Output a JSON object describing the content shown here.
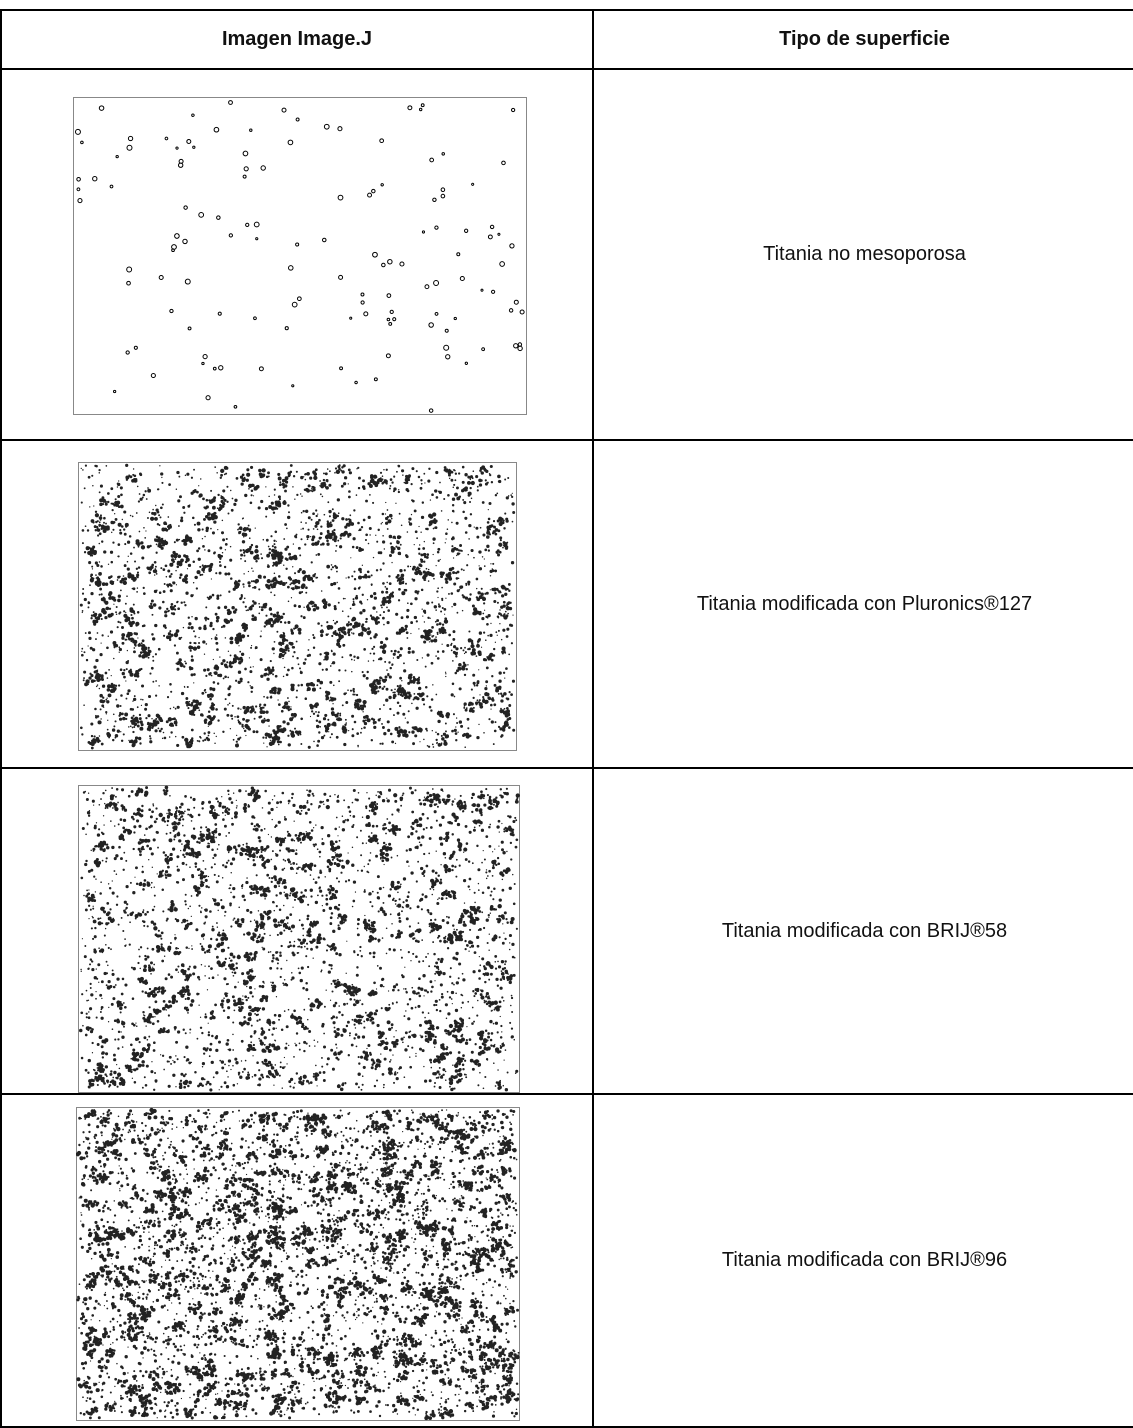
{
  "table": {
    "header": [
      "Imagen Image.J",
      "Tipo de superficie"
    ],
    "rows": [
      {
        "surface": "Titania no mesoporosa"
      },
      {
        "surface": "Titania modificada con Pluronics®127"
      },
      {
        "surface": "Titania modificada con BRIJ®58"
      },
      {
        "surface": "Titania modificada con BRIJ®96"
      }
    ]
  }
}
